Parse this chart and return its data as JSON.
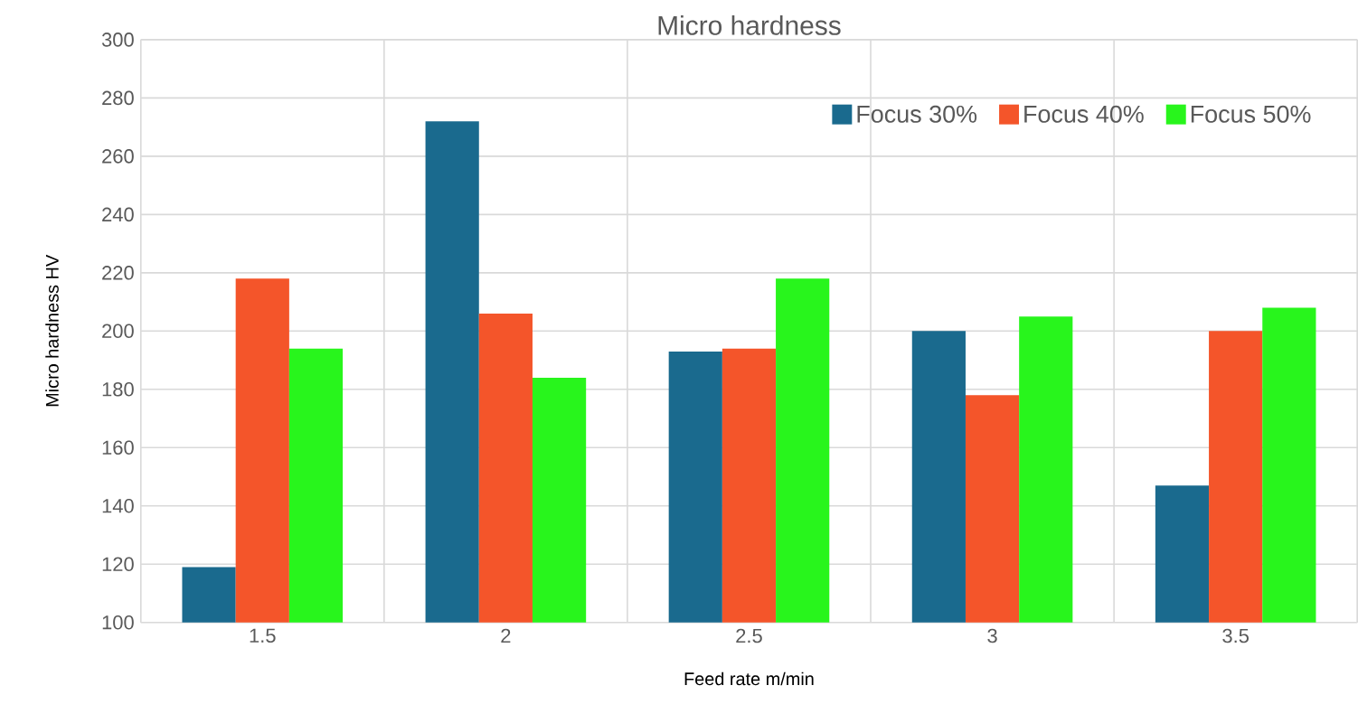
{
  "chart_data": {
    "type": "bar",
    "title": "Micro hardness",
    "xlabel": "Feed rate m/min",
    "ylabel": "Micro hardness HV",
    "categories": [
      "1.5",
      "2",
      "2.5",
      "3",
      "3.5"
    ],
    "series": [
      {
        "name": "Focus 30%",
        "color": "#1a6a8e",
        "values": [
          119,
          272,
          193,
          200,
          147
        ]
      },
      {
        "name": "Focus 40%",
        "color": "#f4552a",
        "values": [
          218,
          206,
          194,
          178,
          200
        ]
      },
      {
        "name": "Focus 50%",
        "color": "#28f51c",
        "values": [
          194,
          184,
          218,
          205,
          208
        ]
      }
    ],
    "ylim": [
      100,
      300
    ],
    "yticks": [
      100,
      120,
      140,
      160,
      180,
      200,
      220,
      240,
      260,
      280,
      300
    ],
    "grid": true,
    "legend": "top right"
  }
}
